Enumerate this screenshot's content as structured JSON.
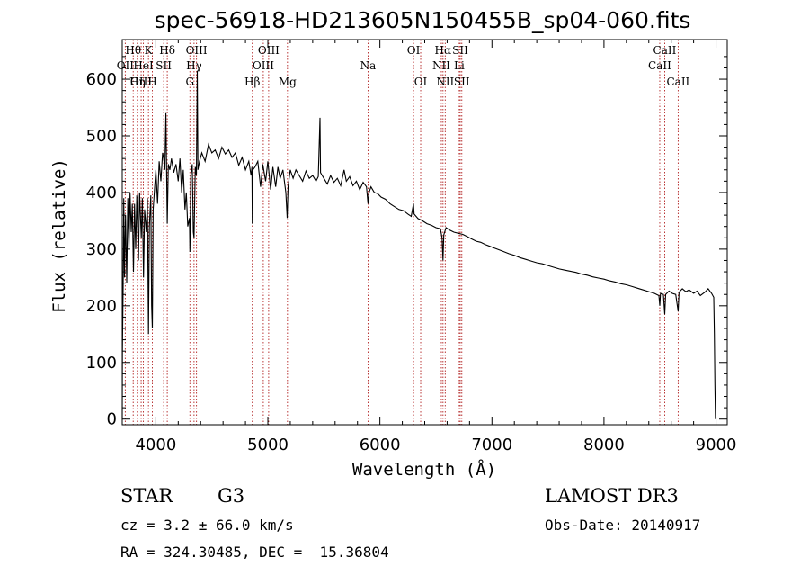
{
  "chart_data": {
    "type": "line",
    "title": "spec-56918-HD213605N150455B_sp04-060.fits",
    "xlabel": "Wavelength (Å)",
    "ylabel": "Flux (relative)",
    "xlim": [
      3700,
      9100
    ],
    "ylim": [
      -10,
      670
    ],
    "xticks": [
      4000,
      5000,
      6000,
      7000,
      8000,
      9000
    ],
    "yticks": [
      0,
      100,
      200,
      300,
      400,
      500,
      600
    ],
    "spectral_lines": [
      {
        "label": "Hθ",
        "wavelength": 3798,
        "row": 0
      },
      {
        "label": "OII",
        "wavelength": 3727,
        "row": 1
      },
      {
        "label": "OIII",
        "wavelength": 3869,
        "row": 2
      },
      {
        "label": "Hη",
        "wavelength": 3835,
        "row": 2
      },
      {
        "label": "K",
        "wavelength": 3934,
        "row": 0
      },
      {
        "label": "HeI",
        "wavelength": 3889,
        "row": 1
      },
      {
        "label": "SII",
        "wavelength": 4070,
        "row": 1
      },
      {
        "label": "H",
        "wavelength": 3969,
        "row": 2
      },
      {
        "label": "Hδ",
        "wavelength": 4102,
        "row": 0
      },
      {
        "label": "OIII",
        "wavelength": 4363,
        "row": 0
      },
      {
        "label": "Hγ",
        "wavelength": 4341,
        "row": 1
      },
      {
        "label": "G",
        "wavelength": 4304,
        "row": 2
      },
      {
        "label": "OIII",
        "wavelength": 5007,
        "row": 0
      },
      {
        "label": "OIII",
        "wavelength": 4959,
        "row": 1
      },
      {
        "label": "Hβ",
        "wavelength": 4861,
        "row": 2
      },
      {
        "label": "Mg",
        "wavelength": 5175,
        "row": 2
      },
      {
        "label": "Na",
        "wavelength": 5894,
        "row": 1
      },
      {
        "label": "OI",
        "wavelength": 6300,
        "row": 0
      },
      {
        "label": "OI",
        "wavelength": 6364,
        "row": 2
      },
      {
        "label": "Hα",
        "wavelength": 6563,
        "row": 0
      },
      {
        "label": "SII",
        "wavelength": 6717,
        "row": 0
      },
      {
        "label": "NII",
        "wavelength": 6548,
        "row": 1
      },
      {
        "label": "Li",
        "wavelength": 6708,
        "row": 1
      },
      {
        "label": "NII",
        "wavelength": 6583,
        "row": 2
      },
      {
        "label": "SII",
        "wavelength": 6731,
        "row": 2
      },
      {
        "label": "CaII",
        "wavelength": 8542,
        "row": 0
      },
      {
        "label": "CaII",
        "wavelength": 8498,
        "row": 1
      },
      {
        "label": "CaII",
        "wavelength": 8662,
        "row": 2
      }
    ],
    "series": [
      {
        "name": "spectrum",
        "points": [
          [
            3700,
            0
          ],
          [
            3702,
            120
          ],
          [
            3708,
            230
          ],
          [
            3714,
            390
          ],
          [
            3720,
            250
          ],
          [
            3730,
            360
          ],
          [
            3740,
            240
          ],
          [
            3750,
            390
          ],
          [
            3760,
            300
          ],
          [
            3770,
            400
          ],
          [
            3780,
            330
          ],
          [
            3790,
            380
          ],
          [
            3800,
            260
          ],
          [
            3810,
            380
          ],
          [
            3820,
            300
          ],
          [
            3830,
            395
          ],
          [
            3845,
            280
          ],
          [
            3855,
            400
          ],
          [
            3870,
            320
          ],
          [
            3880,
            390
          ],
          [
            3890,
            250
          ],
          [
            3900,
            370
          ],
          [
            3915,
            330
          ],
          [
            3925,
            390
          ],
          [
            3934,
            150
          ],
          [
            3942,
            340
          ],
          [
            3955,
            395
          ],
          [
            3962,
            200
          ],
          [
            3969,
            160
          ],
          [
            3976,
            370
          ],
          [
            3990,
            410
          ],
          [
            4000,
            440
          ],
          [
            4015,
            380
          ],
          [
            4030,
            455
          ],
          [
            4045,
            420
          ],
          [
            4060,
            470
          ],
          [
            4070,
            460
          ],
          [
            4080,
            440
          ],
          [
            4090,
            540
          ],
          [
            4095,
            460
          ],
          [
            4102,
            345
          ],
          [
            4112,
            450
          ],
          [
            4125,
            440
          ],
          [
            4140,
            460
          ],
          [
            4160,
            435
          ],
          [
            4180,
            450
          ],
          [
            4200,
            420
          ],
          [
            4215,
            460
          ],
          [
            4230,
            400
          ],
          [
            4245,
            440
          ],
          [
            4260,
            370
          ],
          [
            4272,
            400
          ],
          [
            4285,
            340
          ],
          [
            4300,
            355
          ],
          [
            4304,
            295
          ],
          [
            4312,
            430
          ],
          [
            4325,
            450
          ],
          [
            4335,
            330
          ],
          [
            4341,
            320
          ],
          [
            4352,
            445
          ],
          [
            4362,
            430
          ],
          [
            4370,
            615
          ],
          [
            4376,
            440
          ],
          [
            4390,
            455
          ],
          [
            4410,
            470
          ],
          [
            4440,
            455
          ],
          [
            4470,
            485
          ],
          [
            4500,
            470
          ],
          [
            4530,
            475
          ],
          [
            4560,
            460
          ],
          [
            4590,
            480
          ],
          [
            4620,
            468
          ],
          [
            4650,
            475
          ],
          [
            4680,
            462
          ],
          [
            4710,
            470
          ],
          [
            4740,
            448
          ],
          [
            4770,
            462
          ],
          [
            4800,
            440
          ],
          [
            4830,
            455
          ],
          [
            4850,
            430
          ],
          [
            4858,
            445
          ],
          [
            4861,
            345
          ],
          [
            4866,
            440
          ],
          [
            4885,
            445
          ],
          [
            4910,
            455
          ],
          [
            4935,
            410
          ],
          [
            4955,
            450
          ],
          [
            4980,
            420
          ],
          [
            5000,
            455
          ],
          [
            5025,
            405
          ],
          [
            5045,
            445
          ],
          [
            5070,
            410
          ],
          [
            5090,
            445
          ],
          [
            5110,
            425
          ],
          [
            5135,
            440
          ],
          [
            5160,
            400
          ],
          [
            5172,
            355
          ],
          [
            5180,
            410
          ],
          [
            5200,
            440
          ],
          [
            5225,
            425
          ],
          [
            5250,
            440
          ],
          [
            5280,
            430
          ],
          [
            5310,
            420
          ],
          [
            5340,
            438
          ],
          [
            5370,
            425
          ],
          [
            5400,
            430
          ],
          [
            5430,
            420
          ],
          [
            5450,
            428
          ],
          [
            5465,
            532
          ],
          [
            5470,
            435
          ],
          [
            5500,
            425
          ],
          [
            5530,
            415
          ],
          [
            5560,
            430
          ],
          [
            5590,
            418
          ],
          [
            5620,
            425
          ],
          [
            5650,
            412
          ],
          [
            5680,
            440
          ],
          [
            5700,
            420
          ],
          [
            5730,
            428
          ],
          [
            5760,
            412
          ],
          [
            5790,
            420
          ],
          [
            5820,
            405
          ],
          [
            5850,
            418
          ],
          [
            5880,
            410
          ],
          [
            5894,
            380
          ],
          [
            5900,
            398
          ],
          [
            5920,
            410
          ],
          [
            5950,
            400
          ],
          [
            5980,
            398
          ],
          [
            6010,
            392
          ],
          [
            6050,
            388
          ],
          [
            6090,
            380
          ],
          [
            6130,
            375
          ],
          [
            6170,
            370
          ],
          [
            6210,
            368
          ],
          [
            6250,
            362
          ],
          [
            6280,
            358
          ],
          [
            6300,
            380
          ],
          [
            6305,
            362
          ],
          [
            6340,
            354
          ],
          [
            6380,
            350
          ],
          [
            6420,
            345
          ],
          [
            6460,
            342
          ],
          [
            6500,
            338
          ],
          [
            6540,
            336
          ],
          [
            6555,
            320
          ],
          [
            6563,
            280
          ],
          [
            6570,
            325
          ],
          [
            6590,
            338
          ],
          [
            6620,
            334
          ],
          [
            6660,
            330
          ],
          [
            6700,
            328
          ],
          [
            6740,
            326
          ],
          [
            6780,
            322
          ],
          [
            6820,
            318
          ],
          [
            6860,
            314
          ],
          [
            6900,
            312
          ],
          [
            6940,
            308
          ],
          [
            6980,
            305
          ],
          [
            7020,
            302
          ],
          [
            7060,
            299
          ],
          [
            7100,
            296
          ],
          [
            7150,
            292
          ],
          [
            7200,
            289
          ],
          [
            7250,
            285
          ],
          [
            7300,
            282
          ],
          [
            7350,
            279
          ],
          [
            7400,
            276
          ],
          [
            7450,
            274
          ],
          [
            7500,
            271
          ],
          [
            7550,
            268
          ],
          [
            7600,
            265
          ],
          [
            7650,
            263
          ],
          [
            7700,
            261
          ],
          [
            7750,
            259
          ],
          [
            7800,
            256
          ],
          [
            7850,
            254
          ],
          [
            7900,
            251
          ],
          [
            7950,
            249
          ],
          [
            8000,
            247
          ],
          [
            8050,
            244
          ],
          [
            8100,
            242
          ],
          [
            8150,
            239
          ],
          [
            8200,
            237
          ],
          [
            8250,
            234
          ],
          [
            8300,
            231
          ],
          [
            8350,
            228
          ],
          [
            8400,
            225
          ],
          [
            8450,
            222
          ],
          [
            8490,
            218
          ],
          [
            8498,
            200
          ],
          [
            8505,
            222
          ],
          [
            8530,
            220
          ],
          [
            8542,
            185
          ],
          [
            8550,
            220
          ],
          [
            8580,
            226
          ],
          [
            8610,
            222
          ],
          [
            8640,
            220
          ],
          [
            8662,
            190
          ],
          [
            8670,
            224
          ],
          [
            8700,
            230
          ],
          [
            8730,
            225
          ],
          [
            8760,
            228
          ],
          [
            8800,
            222
          ],
          [
            8830,
            226
          ],
          [
            8860,
            218
          ],
          [
            8900,
            224
          ],
          [
            8930,
            230
          ],
          [
            8960,
            222
          ],
          [
            8980,
            215
          ],
          [
            8985,
            150
          ],
          [
            8990,
            60
          ],
          [
            8995,
            0
          ]
        ]
      }
    ]
  },
  "info": {
    "object_class": "STAR",
    "subclass": "G3",
    "survey": "LAMOST DR3",
    "redshift": "cz = 3.2 ± 66.0 km/s",
    "obs_date": "Obs-Date: 20140917",
    "coords": "RA = 324.30485, DEC =  15.36804"
  }
}
